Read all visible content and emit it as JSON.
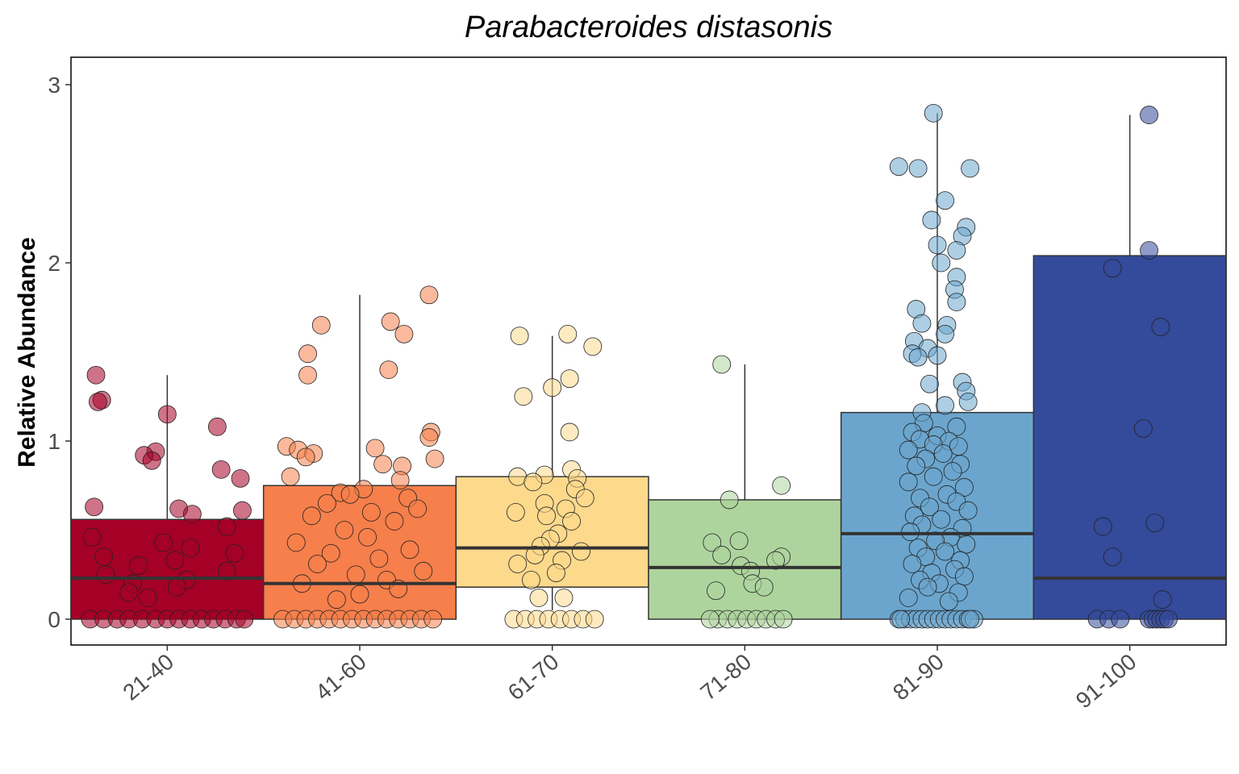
{
  "chart_data": {
    "type": "box",
    "title": "Parabacteroides distasonis",
    "xlabel": "",
    "ylabel": "Relative Abundance",
    "ylim": [
      -0.15,
      3.15
    ],
    "yticks": [
      "0",
      "1",
      "2",
      "3"
    ],
    "grid": false,
    "legend": "none",
    "categories": [
      "21-40",
      "41-60",
      "61-70",
      "71-80",
      "81-90",
      "91-100"
    ],
    "colors": [
      "#a50026",
      "#f67f4b",
      "#fdd98c",
      "#aed49e",
      "#6ba5cd",
      "#344a9a"
    ],
    "boxes": [
      {
        "category": "21-40",
        "q1": 0.0,
        "median": 0.23,
        "q3": 0.56,
        "whisker_low": 0.0,
        "whisker_high": 1.37
      },
      {
        "category": "41-60",
        "q1": 0.0,
        "median": 0.2,
        "q3": 0.75,
        "whisker_low": 0.0,
        "whisker_high": 1.82
      },
      {
        "category": "61-70",
        "q1": 0.18,
        "median": 0.4,
        "q3": 0.8,
        "whisker_low": 0.05,
        "whisker_high": 1.59
      },
      {
        "category": "71-80",
        "q1": 0.0,
        "median": 0.29,
        "q3": 0.67,
        "whisker_low": 0.0,
        "whisker_high": 1.43
      },
      {
        "category": "81-90",
        "q1": 0.0,
        "median": 0.48,
        "q3": 1.16,
        "whisker_low": 0.0,
        "whisker_high": 2.84
      },
      {
        "category": "91-100",
        "q1": 0.0,
        "median": 0.23,
        "q3": 2.04,
        "whisker_low": 0.0,
        "whisker_high": 2.83
      }
    ],
    "points": [
      {
        "category": "21-40",
        "y": [
          1.37,
          1.23,
          1.22,
          1.15,
          1.08,
          0.94,
          0.92,
          0.89,
          0.84,
          0.79,
          0.63,
          0.62,
          0.61,
          0.59,
          0.52,
          0.46,
          0.43,
          0.4,
          0.37,
          0.35,
          0.33,
          0.3,
          0.27,
          0.25,
          0.22,
          0.2,
          0.18,
          0.15,
          0.12,
          0,
          0,
          0,
          0,
          0,
          0,
          0,
          0,
          0,
          0,
          0,
          0,
          0,
          0
        ],
        "jitter": [
          -0.37,
          -0.34,
          -0.36,
          0.0,
          0.26,
          -0.06,
          -0.12,
          -0.08,
          0.28,
          0.38,
          -0.38,
          0.06,
          0.39,
          0.13,
          0.31,
          -0.39,
          -0.02,
          0.12,
          0.35,
          -0.33,
          0.04,
          -0.15,
          0.31,
          -0.32,
          0.1,
          -0.18,
          0.05,
          -0.2,
          -0.1,
          -0.4,
          -0.33,
          -0.26,
          -0.2,
          -0.13,
          -0.06,
          0.0,
          0.06,
          0.12,
          0.18,
          0.24,
          0.3,
          0.36,
          0.4
        ]
      },
      {
        "category": "41-60",
        "y": [
          1.82,
          1.67,
          1.65,
          1.6,
          1.49,
          1.4,
          1.37,
          1.05,
          1.02,
          0.97,
          0.96,
          0.95,
          0.93,
          0.91,
          0.9,
          0.87,
          0.86,
          0.8,
          0.78,
          0.73,
          0.71,
          0.7,
          0.68,
          0.65,
          0.62,
          0.6,
          0.58,
          0.55,
          0.5,
          0.46,
          0.43,
          0.39,
          0.37,
          0.34,
          0.31,
          0.27,
          0.25,
          0.22,
          0.2,
          0.17,
          0.14,
          0.11,
          0,
          0,
          0,
          0,
          0,
          0,
          0,
          0,
          0,
          0,
          0,
          0,
          0,
          0
        ],
        "jitter": [
          0.36,
          0.16,
          -0.2,
          0.23,
          -0.27,
          0.15,
          -0.27,
          0.37,
          0.36,
          -0.38,
          0.08,
          -0.32,
          -0.24,
          -0.28,
          0.39,
          0.12,
          0.22,
          -0.36,
          0.21,
          0.02,
          -0.1,
          -0.05,
          0.25,
          -0.17,
          0.3,
          0.06,
          -0.25,
          0.18,
          -0.08,
          0.04,
          -0.33,
          0.26,
          -0.15,
          0.1,
          -0.22,
          0.33,
          -0.02,
          0.14,
          -0.3,
          0.2,
          0.0,
          -0.12,
          -0.4,
          -0.34,
          -0.28,
          -0.22,
          -0.16,
          -0.1,
          -0.04,
          0.02,
          0.08,
          0.14,
          0.2,
          0.26,
          0.32,
          0.38
        ]
      },
      {
        "category": "61-70",
        "y": [
          1.6,
          1.59,
          1.53,
          1.35,
          1.3,
          1.25,
          1.05,
          0.84,
          0.81,
          0.8,
          0.79,
          0.77,
          0.73,
          0.68,
          0.65,
          0.62,
          0.6,
          0.58,
          0.55,
          0.48,
          0.45,
          0.41,
          0.38,
          0.36,
          0.33,
          0.31,
          0.26,
          0.22,
          0.12,
          0.12,
          0,
          0,
          0,
          0,
          0,
          0,
          0,
          0
        ],
        "jitter": [
          0.08,
          -0.17,
          0.21,
          0.09,
          0.0,
          -0.15,
          0.09,
          0.1,
          -0.04,
          -0.18,
          0.13,
          -0.1,
          0.12,
          0.17,
          -0.04,
          0.07,
          -0.19,
          -0.03,
          0.1,
          0.03,
          -0.01,
          -0.06,
          0.15,
          -0.09,
          0.05,
          -0.18,
          0.02,
          -0.11,
          -0.07,
          0.06,
          -0.2,
          -0.14,
          -0.08,
          -0.02,
          0.04,
          0.1,
          0.16,
          0.22
        ]
      },
      {
        "category": "71-80",
        "y": [
          1.43,
          0.75,
          0.67,
          0.44,
          0.43,
          0.36,
          0.35,
          0.33,
          0.3,
          0.27,
          0.2,
          0.18,
          0.16,
          0,
          0,
          0,
          0,
          0,
          0,
          0,
          0,
          0
        ],
        "jitter": [
          -0.12,
          0.19,
          -0.08,
          -0.03,
          -0.17,
          -0.12,
          0.19,
          0.16,
          -0.02,
          0.03,
          0.04,
          0.1,
          -0.15,
          -0.14,
          -0.09,
          -0.04,
          0.01,
          0.06,
          0.11,
          0.16,
          0.2,
          -0.18
        ]
      },
      {
        "category": "81-90",
        "y": [
          2.84,
          2.54,
          2.53,
          2.53,
          2.35,
          2.24,
          2.2,
          2.15,
          2.1,
          2.07,
          2.0,
          1.92,
          1.85,
          1.78,
          1.74,
          1.66,
          1.65,
          1.6,
          1.56,
          1.52,
          1.49,
          1.48,
          1.47,
          1.33,
          1.32,
          1.28,
          1.22,
          1.2,
          1.16,
          1.1,
          1.08,
          1.05,
          1.03,
          1.01,
          1.0,
          0.98,
          0.97,
          0.95,
          0.93,
          0.9,
          0.87,
          0.86,
          0.83,
          0.8,
          0.77,
          0.74,
          0.7,
          0.68,
          0.66,
          0.63,
          0.61,
          0.58,
          0.56,
          0.53,
          0.51,
          0.49,
          0.46,
          0.44,
          0.42,
          0.4,
          0.38,
          0.35,
          0.33,
          0.31,
          0.28,
          0.26,
          0.24,
          0.22,
          0.2,
          0.18,
          0.15,
          0.12,
          0.1,
          0,
          0,
          0,
          0,
          0,
          0,
          0,
          0,
          0,
          0,
          0,
          0,
          0,
          0,
          0,
          0
        ],
        "jitter": [
          -0.02,
          -0.2,
          -0.1,
          0.17,
          0.04,
          -0.03,
          0.15,
          0.13,
          0.0,
          0.1,
          0.02,
          0.1,
          0.09,
          0.1,
          -0.11,
          -0.08,
          0.05,
          0.04,
          -0.12,
          -0.05,
          -0.13,
          0.0,
          -0.1,
          0.13,
          -0.04,
          0.15,
          0.16,
          0.04,
          -0.08,
          -0.07,
          0.1,
          -0.13,
          0.0,
          -0.09,
          0.06,
          -0.02,
          0.11,
          -0.15,
          0.03,
          -0.06,
          0.12,
          -0.11,
          0.08,
          -0.02,
          -0.15,
          0.14,
          0.05,
          -0.09,
          0.1,
          -0.04,
          0.16,
          -0.12,
          0.02,
          -0.08,
          0.13,
          -0.14,
          0.07,
          -0.01,
          0.15,
          -0.1,
          0.04,
          -0.06,
          0.12,
          -0.13,
          0.09,
          -0.03,
          0.14,
          -0.09,
          0.01,
          -0.05,
          0.11,
          -0.15,
          0.06,
          -0.2,
          -0.17,
          -0.14,
          -0.11,
          -0.08,
          -0.05,
          -0.02,
          0.01,
          0.04,
          0.07,
          0.1,
          0.13,
          0.16,
          0.19,
          -0.19,
          0.17
        ]
      },
      {
        "category": "91-100",
        "y": [
          2.83,
          2.07,
          1.97,
          1.64,
          1.07,
          0.54,
          0.52,
          0.35,
          0.11,
          0,
          0,
          0,
          0,
          0,
          0,
          0,
          0,
          0
        ],
        "jitter": [
          0.1,
          0.1,
          -0.09,
          0.16,
          0.07,
          0.13,
          -0.14,
          -0.09,
          0.17,
          -0.17,
          -0.11,
          -0.05,
          0.1,
          0.12,
          0.14,
          0.16,
          0.18,
          0.2
        ]
      }
    ]
  }
}
